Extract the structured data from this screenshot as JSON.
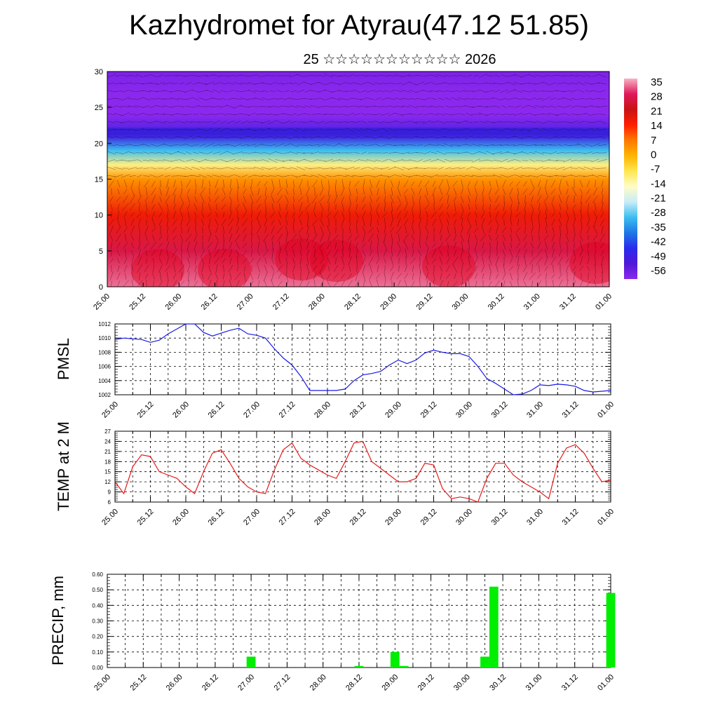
{
  "title": "Kazhydromet for Atyrau(47.12 51.85)",
  "subtitle": "25 ☆☆☆☆☆☆☆☆☆☆☆ 2026",
  "colors": {
    "pmsl": "#1a1ae6",
    "temp": "#e61a1a",
    "precip": "#00ee00",
    "colormap": [
      "#f6b4c4",
      "#e0185a",
      "#c81414",
      "#ff1e00",
      "#ff7800",
      "#ffb400",
      "#ffe650",
      "#fffcc8",
      "#c8ecf8",
      "#3cbef0",
      "#1e78e6",
      "#2a2aee",
      "#5018d6",
      "#8c28ee"
    ]
  },
  "chart_data": [
    {
      "type": "heatmap",
      "name": "cross-section",
      "ylim": [
        0,
        30
      ],
      "yticks": [
        "0",
        "5",
        "10",
        "15",
        "20",
        "25",
        "30"
      ],
      "xticks": [
        "25.00",
        "25.12",
        "26.00",
        "26.12",
        "27.00",
        "27.12",
        "28.00",
        "28.12",
        "29.00",
        "29.12",
        "30.00",
        "30.12",
        "31.00",
        "31.12",
        "01.00"
      ],
      "colorbar_labels": [
        "35",
        "28",
        "21",
        "14",
        "7",
        "0",
        "-7",
        "-14",
        "-21",
        "-28",
        "-35",
        "-42",
        "-49",
        "-56"
      ],
      "value_range": [
        -56,
        35
      ],
      "surface_profile_by_level": [
        {
          "level": 0,
          "value": 32
        },
        {
          "level": 5,
          "value": 26
        },
        {
          "level": 10,
          "value": 16
        },
        {
          "level": 15,
          "value": 4
        },
        {
          "level": 17,
          "value": -10
        },
        {
          "level": 19,
          "value": -28
        },
        {
          "level": 21,
          "value": -46
        },
        {
          "level": 24,
          "value": -60
        },
        {
          "level": 27,
          "value": -58
        },
        {
          "level": 30,
          "value": -54
        }
      ]
    },
    {
      "type": "line",
      "name": "pmsl",
      "ylabel": "PMSL",
      "ylim": [
        1002,
        1012
      ],
      "yticks": [
        "1002",
        "1004",
        "1006",
        "1008",
        "1010",
        "1012"
      ],
      "xticks": [
        "25.00",
        "25.12",
        "26.00",
        "26.12",
        "27.00",
        "27.12",
        "28.00",
        "28.12",
        "29.00",
        "29.12",
        "30.00",
        "30.12",
        "31.00",
        "31.12",
        "01.00"
      ],
      "x": [
        0,
        0.25,
        0.5,
        0.75,
        1,
        1.25,
        1.5,
        1.75,
        2,
        2.25,
        2.5,
        2.75,
        3,
        3.25,
        3.5,
        3.75,
        4,
        4.25,
        4.5,
        4.75,
        5,
        5.25,
        5.5,
        5.75,
        6,
        6.25,
        6.5,
        6.75,
        7,
        7.25,
        7.5,
        7.75,
        8,
        8.25,
        8.5,
        8.75,
        9,
        9.25,
        9.5,
        9.75,
        10,
        10.25,
        10.5,
        10.75,
        11,
        11.25,
        11.5,
        11.75,
        12,
        12.25,
        12.5,
        12.75,
        13,
        13.25,
        13.5,
        13.75,
        14
      ],
      "values": [
        1009.8,
        1010.0,
        1009.9,
        1009.8,
        1009.4,
        1009.7,
        1010.6,
        1011.3,
        1012.0,
        1012.0,
        1010.8,
        1010.3,
        1010.7,
        1011.1,
        1011.4,
        1010.6,
        1010.4,
        1010.0,
        1008.5,
        1007.2,
        1006.2,
        1004.6,
        1002.6,
        1002.6,
        1002.6,
        1002.6,
        1002.8,
        1004.0,
        1004.8,
        1005.0,
        1005.3,
        1006.2,
        1006.9,
        1006.4,
        1006.9,
        1007.9,
        1008.3,
        1008.0,
        1007.8,
        1007.8,
        1007.4,
        1006.0,
        1004.3,
        1003.6,
        1002.8,
        1002.0,
        1002.1,
        1002.6,
        1003.4,
        1003.3,
        1003.5,
        1003.4,
        1003.2,
        1002.6,
        1002.4,
        1002.5,
        1002.6
      ]
    },
    {
      "type": "line",
      "name": "temp",
      "ylabel": "TEMP at 2 M",
      "ylim": [
        6,
        27
      ],
      "yticks": [
        "6",
        "9",
        "12",
        "15",
        "18",
        "21",
        "24",
        "27"
      ],
      "xticks": [
        "25.00",
        "25.12",
        "26.00",
        "26.12",
        "27.00",
        "27.12",
        "28.00",
        "28.12",
        "29.00",
        "29.12",
        "30.00",
        "30.12",
        "31.00",
        "31.12",
        "01.00"
      ],
      "x": [
        0,
        0.25,
        0.5,
        0.75,
        1,
        1.25,
        1.5,
        1.75,
        2,
        2.25,
        2.5,
        2.75,
        3,
        3.25,
        3.5,
        3.75,
        4,
        4.25,
        4.5,
        4.75,
        5,
        5.25,
        5.5,
        5.75,
        6,
        6.25,
        6.5,
        6.75,
        7,
        7.25,
        7.5,
        7.75,
        8,
        8.25,
        8.5,
        8.75,
        9,
        9.25,
        9.5,
        9.75,
        10,
        10.25,
        10.5,
        10.75,
        11,
        11.25,
        11.5,
        11.75,
        12,
        12.25,
        12.5,
        12.75,
        13,
        13.25,
        13.5,
        13.75,
        14
      ],
      "values": [
        12.0,
        8.5,
        16.5,
        20.0,
        19.5,
        15.0,
        14.0,
        13.0,
        10.5,
        8.5,
        15.0,
        20.5,
        21.5,
        17.5,
        13.0,
        10.5,
        9.0,
        8.5,
        15.5,
        21.5,
        23.5,
        19.0,
        17.0,
        15.5,
        14.0,
        13.0,
        18.0,
        23.5,
        24.0,
        18.0,
        16.0,
        14.0,
        12.0,
        12.0,
        13.0,
        17.5,
        17.0,
        10.0,
        7.0,
        7.5,
        7.0,
        6.0,
        13.0,
        17.5,
        17.5,
        14.0,
        12.0,
        10.5,
        9.0,
        7.0,
        17.5,
        22.0,
        23.0,
        20.5,
        16.0,
        12.0,
        12.5
      ]
    },
    {
      "type": "bar",
      "name": "precip",
      "ylabel": "PRECIP, mm",
      "ylim": [
        0,
        0.6
      ],
      "yticks": [
        "0.00",
        "0.10",
        "0.20",
        "0.30",
        "0.40",
        "0.50",
        "0.60"
      ],
      "xticks": [
        "25.00",
        "25.12",
        "26.00",
        "26.12",
        "27.00",
        "27.12",
        "28.00",
        "28.12",
        "29.00",
        "29.12",
        "30.00",
        "30.12",
        "31.00",
        "31.12",
        "01.00"
      ],
      "x": [
        4.0,
        7.0,
        8.0,
        8.25,
        10.5,
        10.75,
        14.0
      ],
      "values": [
        0.07,
        0.01,
        0.1,
        0.01,
        0.07,
        0.52,
        0.48
      ]
    }
  ]
}
